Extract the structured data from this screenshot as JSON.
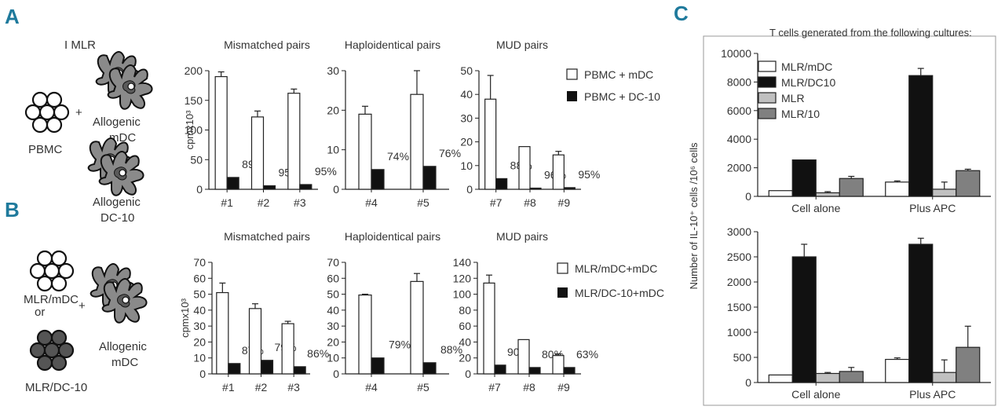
{
  "panel_letters": {
    "a": "A",
    "b": "B",
    "c": "C"
  },
  "colors": {
    "panel_letter": "#1f7a9c",
    "axis": "#222222",
    "text": "#333333",
    "white_bar": "#ffffff",
    "black_bar": "#111111",
    "light_gray_bar": "#c0c0c0",
    "dark_gray_bar": "#808080",
    "cell_gray": "#555555"
  },
  "schematic_a": {
    "title": "I MLR",
    "responder": "PBMC",
    "plus": "+",
    "stim_top_line1": "Allogenic",
    "stim_top_line2": "mDC",
    "stim_bottom_line1": "Allogenic",
    "stim_bottom_line2": "DC-10"
  },
  "schematic_b": {
    "responder_top_line1": "MLR/mDC",
    "responder_top_line2": "or",
    "responder_bottom": "MLR/DC-10",
    "plus": "+",
    "stim_line1": "Allogenic",
    "stim_line2": "mDC"
  },
  "legend_a": [
    "PBMC + mDC",
    "PBMC + DC-10"
  ],
  "legend_b": [
    "MLR/mDC+mDC",
    "MLR/DC-10+mDC"
  ],
  "panel_c_title": "T cells generated from the following cultures:",
  "chart_data": [
    {
      "id": "a1",
      "type": "bar",
      "title": "Mismatched pairs",
      "ylabel": "cpmx10³",
      "categories": [
        "#1",
        "#2",
        "#3"
      ],
      "ylim": [
        0,
        200
      ],
      "yticks": [
        0,
        50,
        100,
        150,
        200
      ],
      "series": [
        {
          "name": "PBMC + mDC",
          "values": [
            190,
            122,
            162
          ],
          "errors": [
            8,
            10,
            7
          ]
        },
        {
          "name": "PBMC + DC-10",
          "values": [
            20,
            6,
            8
          ],
          "errors": [
            0,
            0,
            0
          ]
        }
      ],
      "labels": [
        "89%",
        "95%",
        "95%"
      ]
    },
    {
      "id": "a2",
      "type": "bar",
      "title": "Haploidentical pairs",
      "ylabel": "",
      "categories": [
        "#4",
        "#5"
      ],
      "ylim": [
        0,
        30
      ],
      "yticks": [
        0,
        10,
        20,
        30
      ],
      "series": [
        {
          "name": "PBMC + mDC",
          "values": [
            19,
            24
          ],
          "errors": [
            2,
            6
          ]
        },
        {
          "name": "PBMC + DC-10",
          "values": [
            5,
            5.8
          ],
          "errors": [
            0,
            0
          ]
        }
      ],
      "labels": [
        "74%",
        "76%"
      ]
    },
    {
      "id": "a3",
      "type": "bar",
      "title": "MUD pairs",
      "ylabel": "",
      "categories": [
        "#7",
        "#8",
        "#9"
      ],
      "ylim": [
        0,
        50
      ],
      "yticks": [
        0,
        10,
        20,
        30,
        40,
        50
      ],
      "series": [
        {
          "name": "PBMC + mDC",
          "values": [
            38,
            18,
            14.5
          ],
          "errors": [
            10,
            0,
            1.5
          ]
        },
        {
          "name": "PBMC + DC-10",
          "values": [
            4.5,
            0.5,
            0.7
          ],
          "errors": [
            0,
            0,
            0
          ]
        }
      ],
      "labels": [
        "88%",
        "96%",
        "95%"
      ]
    },
    {
      "id": "b1",
      "type": "bar",
      "title": "Mismatched pairs",
      "ylabel": "cpmx10³",
      "categories": [
        "#1",
        "#2",
        "#3"
      ],
      "ylim": [
        0,
        70
      ],
      "yticks": [
        0,
        10,
        20,
        30,
        40,
        50,
        60,
        70
      ],
      "series": [
        {
          "name": "MLR/mDC+mDC",
          "values": [
            51,
            41,
            31.5
          ],
          "errors": [
            6,
            3,
            1.5
          ]
        },
        {
          "name": "MLR/DC-10+mDC",
          "values": [
            6.5,
            8.5,
            4.5
          ],
          "errors": [
            0,
            0,
            0
          ]
        }
      ],
      "labels": [
        "87%",
        "79%",
        "86%"
      ]
    },
    {
      "id": "b2",
      "type": "bar",
      "title": "Haploidentical pairs",
      "ylabel": "",
      "categories": [
        "#4",
        "#5"
      ],
      "ylim": [
        0,
        70
      ],
      "yticks": [
        0,
        10,
        20,
        30,
        40,
        50,
        60,
        70
      ],
      "series": [
        {
          "name": "MLR/mDC+mDC",
          "values": [
            49.5,
            58
          ],
          "errors": [
            0.5,
            5
          ]
        },
        {
          "name": "MLR/DC-10+mDC",
          "values": [
            10,
            7
          ],
          "errors": [
            0,
            0
          ]
        }
      ],
      "labels": [
        "79%",
        "88%"
      ]
    },
    {
      "id": "b3",
      "type": "bar",
      "title": "MUD pairs",
      "ylabel": "",
      "categories": [
        "#7",
        "#8",
        "#9"
      ],
      "ylim": [
        0,
        140
      ],
      "yticks": [
        0,
        20,
        40,
        60,
        80,
        100,
        120,
        140
      ],
      "series": [
        {
          "name": "MLR/mDC+mDC",
          "values": [
            114,
            43,
            23
          ],
          "errors": [
            10,
            0,
            2
          ]
        },
        {
          "name": "MLR/DC-10+mDC",
          "values": [
            11,
            8,
            8
          ],
          "errors": [
            0,
            0,
            0
          ]
        }
      ],
      "labels": [
        "90%",
        "80%",
        "63%"
      ]
    },
    {
      "id": "c1",
      "type": "bar",
      "title": "",
      "ylabel": "",
      "categories": [
        "Cell alone",
        "Plus APC"
      ],
      "ylim": [
        0,
        10000
      ],
      "yticks": [
        0,
        2000,
        4000,
        6000,
        8000,
        10000
      ],
      "series": [
        {
          "name": "MLR/mDC",
          "values": [
            400,
            1000
          ],
          "errors": [
            0,
            80
          ]
        },
        {
          "name": "MLR/DC10",
          "values": [
            2550,
            8450
          ],
          "errors": [
            0,
            500
          ]
        },
        {
          "name": "MLR",
          "values": [
            250,
            500
          ],
          "errors": [
            80,
            500
          ]
        },
        {
          "name": "MLR/10",
          "values": [
            1250,
            1800
          ],
          "errors": [
            150,
            100
          ]
        }
      ],
      "legend": [
        "MLR/mDC",
        "MLR/DC10",
        "MLR",
        "MLR/10"
      ]
    },
    {
      "id": "c2",
      "type": "bar",
      "title": "",
      "ylabel": "Number of IL-10⁺ cells /10⁶ cells",
      "categories": [
        "Cell alone",
        "Plus APC"
      ],
      "ylim": [
        0,
        3000
      ],
      "yticks": [
        0,
        500,
        1000,
        1500,
        2000,
        2500,
        3000
      ],
      "series": [
        {
          "name": "MLR/mDC",
          "values": [
            150,
            460
          ],
          "errors": [
            0,
            30
          ]
        },
        {
          "name": "MLR/DC10",
          "values": [
            2500,
            2750
          ],
          "errors": [
            250,
            120
          ]
        },
        {
          "name": "MLR",
          "values": [
            180,
            200
          ],
          "errors": [
            20,
            250
          ]
        },
        {
          "name": "MLR/10",
          "values": [
            220,
            700
          ],
          "errors": [
            80,
            420
          ]
        }
      ]
    }
  ]
}
